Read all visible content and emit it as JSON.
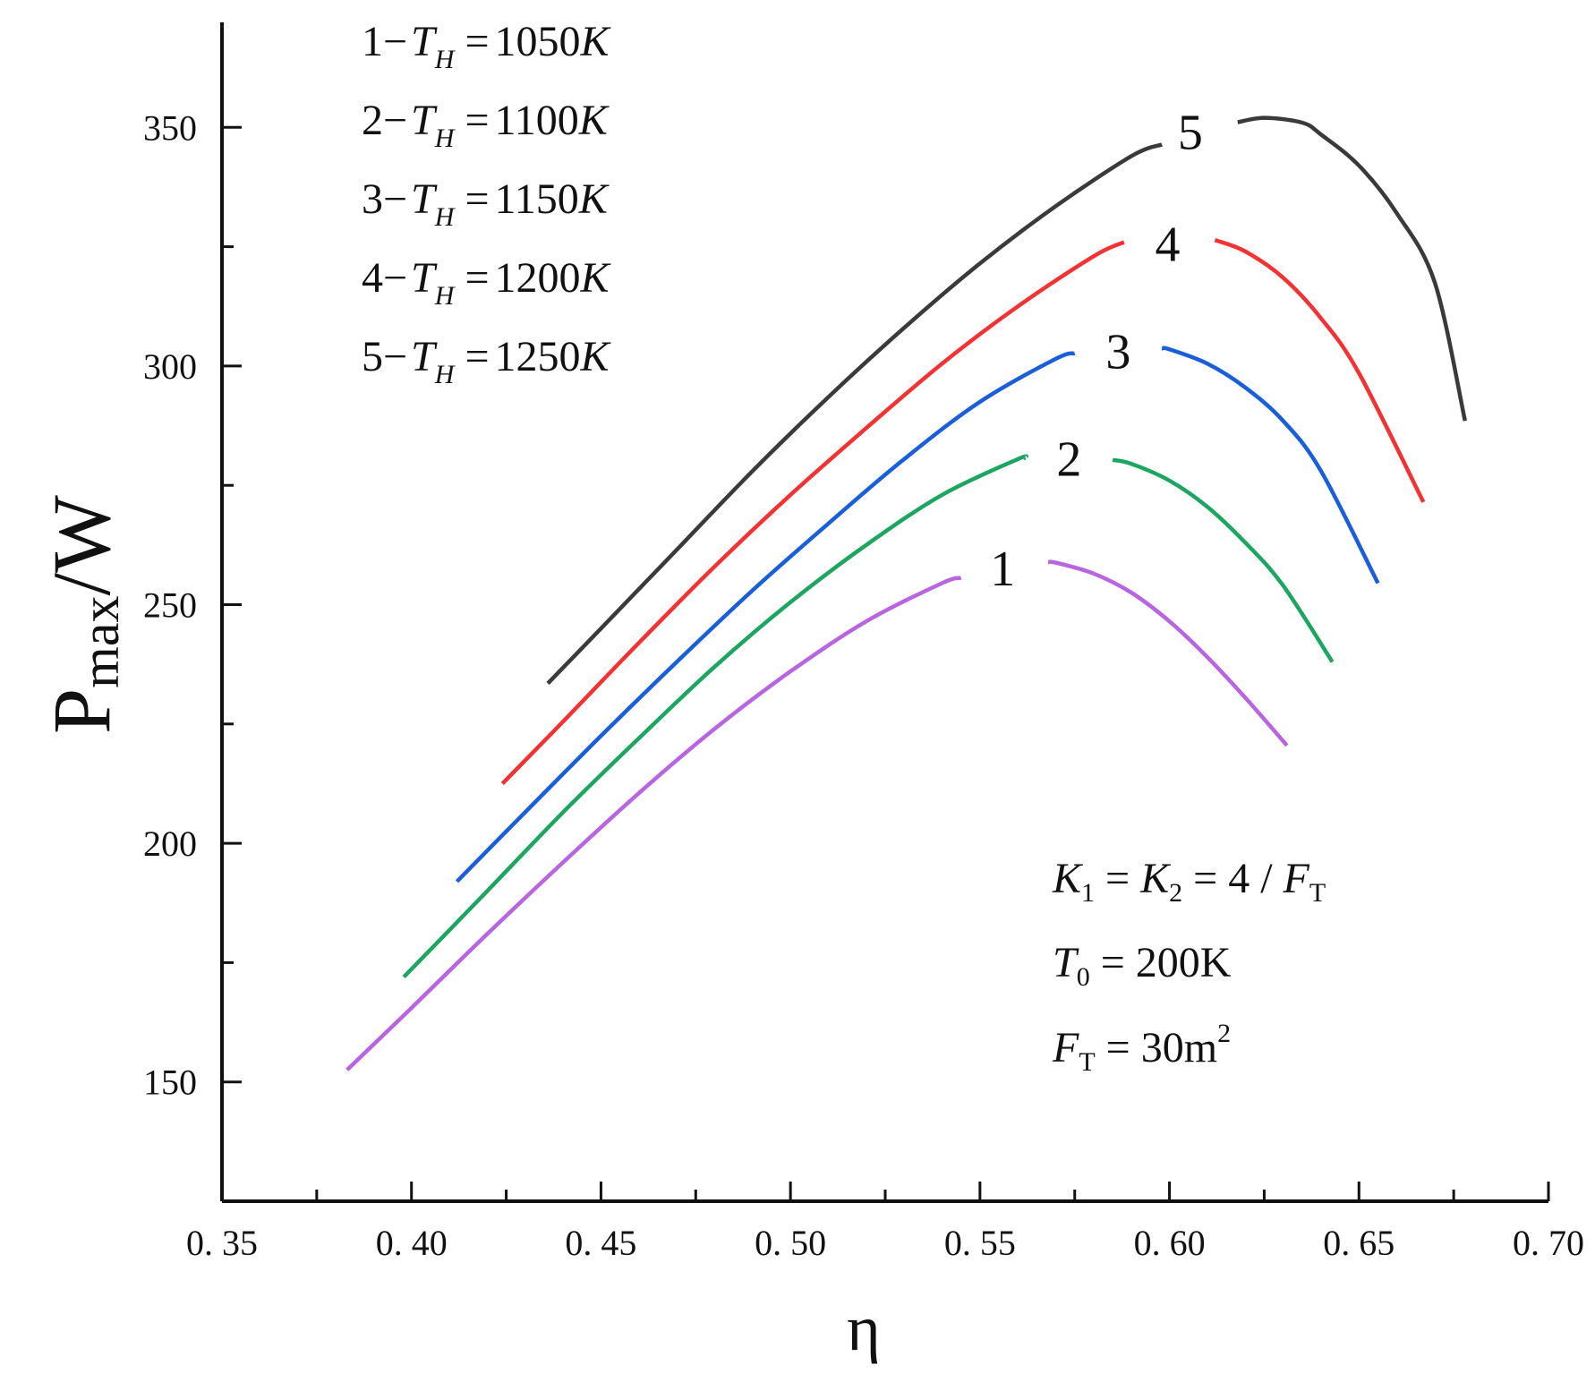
{
  "chart_data": {
    "type": "line",
    "xlabel": "η",
    "ylabel": {
      "main": "P",
      "sub": "max",
      "unit": "/W"
    },
    "xlim": [
      0.35,
      0.7
    ],
    "ylim": [
      125,
      372
    ],
    "xticks": [
      0.35,
      0.4,
      0.45,
      0.5,
      0.55,
      0.6,
      0.65,
      0.7
    ],
    "xtick_labels": [
      "0. 35",
      "0. 40",
      "0. 45",
      "0. 50",
      "0. 55",
      "0. 60",
      "0. 65",
      "0. 70"
    ],
    "yticks": [
      150,
      200,
      250,
      300,
      350
    ],
    "ytick_labels": [
      "150",
      "200",
      "250",
      "300",
      "350"
    ],
    "legend": [
      {
        "num": "1",
        "sym": "T",
        "sub": "H",
        "value": "1050",
        "unit": "K"
      },
      {
        "num": "2",
        "sym": "T",
        "sub": "H",
        "value": "1100",
        "unit": "K"
      },
      {
        "num": "3",
        "sym": "T",
        "sub": "H",
        "value": "1150",
        "unit": "K"
      },
      {
        "num": "4",
        "sym": "T",
        "sub": "H",
        "value": "1200",
        "unit": "K"
      },
      {
        "num": "5",
        "sym": "T",
        "sub": "H",
        "value": "1250",
        "unit": "K"
      }
    ],
    "annotations": {
      "k_line": {
        "k1": "K",
        "k1_sub": "1",
        "k2": "K",
        "k2_sub": "2",
        "value": "4",
        "ft": "F",
        "ft_sub": "T"
      },
      "t0_line": {
        "sym": "T",
        "sub": "0",
        "value": "200K"
      },
      "ft_line": {
        "sym": "F",
        "sub": "T",
        "value": "30m",
        "sup": "2"
      }
    },
    "series": [
      {
        "name": "1",
        "color": "#b865e0",
        "points": [
          [
            0.383,
            152.5
          ],
          [
            0.4,
            165.5
          ],
          [
            0.42,
            181
          ],
          [
            0.44,
            196
          ],
          [
            0.46,
            210.5
          ],
          [
            0.48,
            224
          ],
          [
            0.5,
            236
          ],
          [
            0.52,
            246.5
          ],
          [
            0.54,
            254.5
          ],
          [
            0.56,
            259
          ],
          [
            0.57,
            258.8
          ],
          [
            0.58,
            256.5
          ],
          [
            0.59,
            252.5
          ],
          [
            0.6,
            246.5
          ],
          [
            0.61,
            239
          ],
          [
            0.62,
            230.5
          ],
          [
            0.631,
            220.5
          ]
        ],
        "gap": [
          0.545,
          0.568
        ],
        "label_x": 0.556,
        "label_y": 254
      },
      {
        "name": "2",
        "color": "#1ea562",
        "points": [
          [
            0.398,
            172
          ],
          [
            0.42,
            190
          ],
          [
            0.44,
            206.5
          ],
          [
            0.46,
            222
          ],
          [
            0.48,
            237
          ],
          [
            0.5,
            250.5
          ],
          [
            0.52,
            262.5
          ],
          [
            0.54,
            273
          ],
          [
            0.56,
            280.5
          ],
          [
            0.575,
            282
          ],
          [
            0.59,
            279.5
          ],
          [
            0.6,
            276
          ],
          [
            0.61,
            270.5
          ],
          [
            0.62,
            263
          ],
          [
            0.63,
            254
          ],
          [
            0.643,
            238
          ]
        ],
        "gap": [
          0.562,
          0.585
        ],
        "label_x": 0.5735,
        "label_y": 277
      },
      {
        "name": "3",
        "color": "#1a5fd8",
        "points": [
          [
            0.412,
            192
          ],
          [
            0.43,
            206.5
          ],
          [
            0.45,
            222.5
          ],
          [
            0.47,
            238
          ],
          [
            0.49,
            253
          ],
          [
            0.51,
            267
          ],
          [
            0.53,
            280.5
          ],
          [
            0.55,
            292.5
          ],
          [
            0.57,
            301.5
          ],
          [
            0.585,
            305
          ],
          [
            0.6,
            303.5
          ],
          [
            0.61,
            300.5
          ],
          [
            0.62,
            295.5
          ],
          [
            0.63,
            288.5
          ],
          [
            0.64,
            278
          ],
          [
            0.655,
            254.5
          ]
        ],
        "gap": [
          0.575,
          0.598
        ],
        "label_x": 0.5865,
        "label_y": 299.5
      },
      {
        "name": "4",
        "color": "#f23333",
        "points": [
          [
            0.424,
            212.5
          ],
          [
            0.44,
            225.5
          ],
          [
            0.46,
            242
          ],
          [
            0.48,
            258
          ],
          [
            0.5,
            273
          ],
          [
            0.52,
            287
          ],
          [
            0.54,
            300.5
          ],
          [
            0.56,
            312.5
          ],
          [
            0.58,
            323
          ],
          [
            0.595,
            328.5
          ],
          [
            0.61,
            327
          ],
          [
            0.62,
            324
          ],
          [
            0.63,
            318.5
          ],
          [
            0.64,
            310
          ],
          [
            0.65,
            298.5
          ],
          [
            0.667,
            271.5
          ]
        ],
        "gap": [
          0.588,
          0.612
        ],
        "label_x": 0.5995,
        "label_y": 322
      },
      {
        "name": "5",
        "color": "#3a3a3a",
        "points": [
          [
            0.436,
            233.5
          ],
          [
            0.45,
            245
          ],
          [
            0.47,
            261.5
          ],
          [
            0.49,
            278
          ],
          [
            0.51,
            293.5
          ],
          [
            0.53,
            308
          ],
          [
            0.55,
            321.5
          ],
          [
            0.57,
            333.5
          ],
          [
            0.59,
            344
          ],
          [
            0.61,
            350
          ],
          [
            0.625,
            352
          ],
          [
            0.635,
            351
          ],
          [
            0.64,
            348.5
          ],
          [
            0.65,
            342
          ],
          [
            0.66,
            332
          ],
          [
            0.67,
            317.5
          ],
          [
            0.678,
            288.5
          ]
        ],
        "gap": [
          0.598,
          0.618
        ],
        "label_x": 0.6055,
        "label_y": 345.5
      }
    ]
  }
}
